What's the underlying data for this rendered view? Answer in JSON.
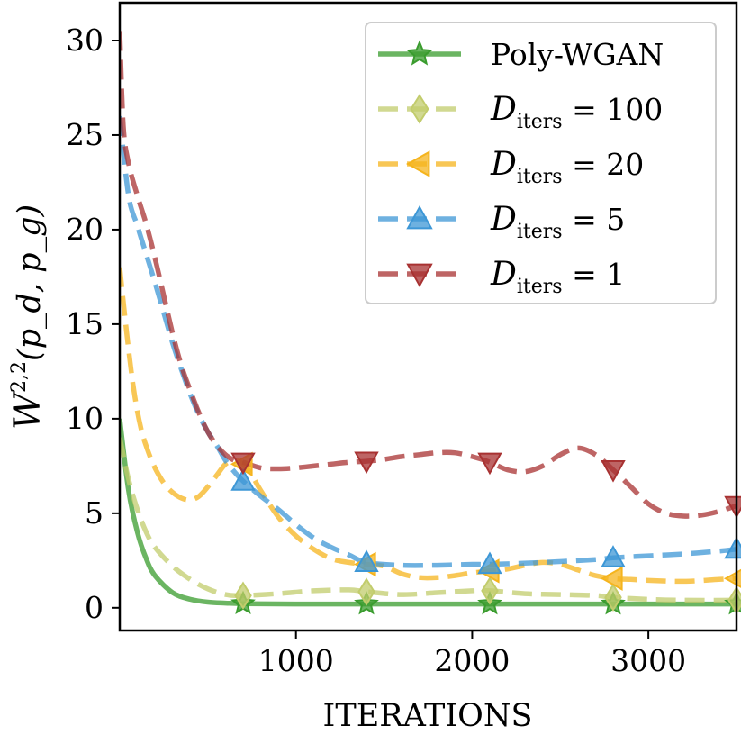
{
  "chart_data": {
    "type": "line",
    "title": "",
    "xlabel": "ITERATIONS",
    "ylabel": "W",
    "ylabel_sup": "2,2",
    "ylabel_args": "(p_d, p_g)",
    "xlim": [
      0,
      3500
    ],
    "ylim": [
      -1.2,
      32
    ],
    "xticks": [
      1000,
      2000,
      3000
    ],
    "yticks": [
      0,
      5,
      10,
      15,
      20,
      25,
      30
    ],
    "legend_position": "top-right",
    "series": [
      {
        "name": "Poly-WGAN",
        "label_main": "Poly-WGAN",
        "label_sub": "",
        "label_value": "",
        "color": "#3a9c2e",
        "marker": "star",
        "dashed": false,
        "x": [
          0,
          50,
          100,
          150,
          200,
          300,
          400,
          500,
          600,
          700,
          1000,
          1400,
          2100,
          2800,
          3500
        ],
        "y": [
          10,
          6.2,
          4.0,
          2.6,
          1.7,
          0.8,
          0.45,
          0.3,
          0.25,
          0.22,
          0.2,
          0.2,
          0.2,
          0.2,
          0.2
        ],
        "marker_x": [
          700,
          1400,
          2100,
          2800,
          3500
        ],
        "marker_y": [
          0.22,
          0.2,
          0.2,
          0.2,
          0.2
        ]
      },
      {
        "name": "D_iters = 100",
        "label_main": "D",
        "label_sub": "iters",
        "label_value": "= 100",
        "color": "#c2cc6c",
        "marker": "diamond",
        "dashed": true,
        "x": [
          0,
          50,
          100,
          150,
          200,
          300,
          400,
          500,
          600,
          700,
          900,
          1100,
          1300,
          1400,
          1600,
          1800,
          2000,
          2100,
          2300,
          2500,
          2700,
          2800,
          3000,
          3200,
          3500
        ],
        "y": [
          9,
          6.8,
          5.2,
          4.0,
          3.2,
          2.2,
          1.5,
          1.0,
          0.7,
          0.65,
          0.75,
          0.9,
          0.95,
          0.85,
          0.7,
          0.8,
          0.9,
          0.9,
          0.75,
          0.7,
          0.65,
          0.55,
          0.45,
          0.4,
          0.4
        ],
        "marker_x": [
          700,
          1400,
          2100,
          2800,
          3500
        ],
        "marker_y": [
          0.65,
          0.85,
          0.9,
          0.55,
          0.4
        ]
      },
      {
        "name": "D_iters = 20",
        "label_main": "D",
        "label_sub": "iters",
        "label_value": "= 20",
        "color": "#f5b41d",
        "marker": "triangle-left",
        "dashed": true,
        "x": [
          0,
          40,
          80,
          120,
          160,
          200,
          250,
          300,
          350,
          400,
          450,
          500,
          550,
          600,
          650,
          700,
          750,
          800,
          900,
          1000,
          1100,
          1200,
          1300,
          1400,
          1500,
          1600,
          1700,
          1800,
          1900,
          2000,
          2100,
          2200,
          2300,
          2400,
          2500,
          2600,
          2700,
          2800,
          2900,
          3000,
          3200,
          3400,
          3500
        ],
        "y": [
          18,
          14.5,
          11.5,
          9.5,
          8.3,
          7.4,
          6.6,
          6.1,
          5.8,
          5.7,
          5.9,
          6.4,
          7.0,
          7.6,
          7.8,
          7.6,
          7.0,
          6.2,
          4.8,
          3.8,
          3.1,
          2.6,
          2.4,
          2.3,
          2.2,
          1.8,
          1.6,
          1.6,
          1.7,
          1.85,
          1.95,
          2.05,
          2.25,
          2.4,
          2.3,
          2.0,
          1.7,
          1.55,
          1.5,
          1.45,
          1.4,
          1.5,
          1.55
        ],
        "marker_x": [
          700,
          1400,
          2100,
          2800,
          3500
        ],
        "marker_y": [
          7.6,
          2.3,
          1.95,
          1.55,
          1.55
        ]
      },
      {
        "name": "D_iters = 5",
        "label_main": "D",
        "label_sub": "iters",
        "label_value": "= 5",
        "color": "#3d97d6",
        "marker": "triangle-up",
        "dashed": true,
        "x": [
          0,
          50,
          100,
          150,
          200,
          250,
          300,
          350,
          400,
          450,
          500,
          550,
          600,
          650,
          700,
          800,
          900,
          1000,
          1100,
          1200,
          1300,
          1400,
          1600,
          1800,
          2000,
          2100,
          2400,
          2700,
          2800,
          3000,
          3200,
          3400,
          3500
        ],
        "y": [
          26,
          21.8,
          20.2,
          18.7,
          17.2,
          15.6,
          14.0,
          12.6,
          11.3,
          10.2,
          9.3,
          8.6,
          7.8,
          7.2,
          6.7,
          5.9,
          5.2,
          4.4,
          3.7,
          3.2,
          2.8,
          2.4,
          2.25,
          2.25,
          2.3,
          2.3,
          2.4,
          2.55,
          2.65,
          2.75,
          2.85,
          3.0,
          3.1
        ],
        "marker_x": [
          700,
          1400,
          2100,
          2800,
          3500
        ],
        "marker_y": [
          6.7,
          2.4,
          2.3,
          2.65,
          3.1
        ]
      },
      {
        "name": "D_iters = 1",
        "label_main": "D",
        "label_sub": "iters",
        "label_value": "= 1",
        "color": "#a83232",
        "marker": "triangle-down",
        "dashed": true,
        "x": [
          0,
          20,
          50,
          100,
          150,
          200,
          250,
          300,
          350,
          400,
          450,
          500,
          550,
          600,
          650,
          700,
          800,
          900,
          1000,
          1100,
          1200,
          1300,
          1400,
          1500,
          1600,
          1700,
          1800,
          1900,
          2000,
          2100,
          2200,
          2300,
          2400,
          2500,
          2600,
          2700,
          2800,
          2900,
          3000,
          3100,
          3200,
          3300,
          3400,
          3500
        ],
        "y": [
          30.5,
          25.5,
          23.5,
          21.8,
          20.3,
          18.5,
          16.5,
          14.5,
          12.8,
          11.5,
          10.3,
          9.3,
          8.6,
          8.1,
          7.8,
          7.7,
          7.4,
          7.35,
          7.4,
          7.5,
          7.6,
          7.7,
          7.75,
          7.85,
          8.0,
          8.1,
          8.2,
          8.2,
          8.0,
          7.7,
          7.3,
          7.2,
          7.5,
          8.1,
          8.45,
          8.1,
          7.3,
          6.4,
          5.5,
          5.0,
          4.85,
          4.9,
          5.1,
          5.4
        ],
        "marker_x": [
          700,
          1400,
          2100,
          2800,
          3500
        ],
        "marker_y": [
          7.7,
          7.75,
          7.7,
          7.3,
          5.4
        ]
      }
    ]
  }
}
